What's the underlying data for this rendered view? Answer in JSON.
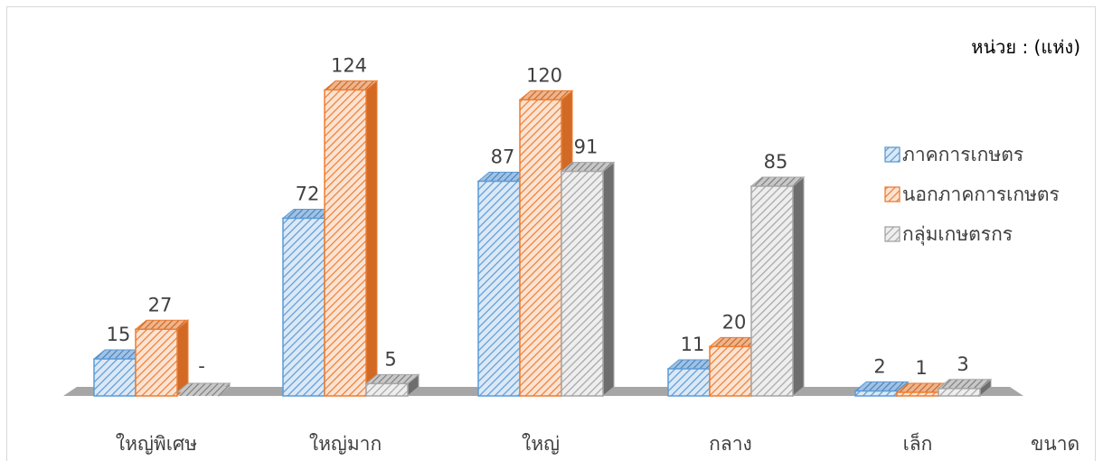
{
  "chart_data": {
    "type": "bar",
    "unit_label": "หน่วย : (แห่ง)",
    "xlabel": "ขนาด",
    "categories": [
      "ใหญ่พิเศษ",
      "ใหญ่มาก",
      "ใหญ่",
      "กลาง",
      "เล็ก"
    ],
    "series": [
      {
        "name": "ภาคการเกษตร",
        "values": [
          15,
          72,
          87,
          11,
          2
        ],
        "labels": [
          "15",
          "72",
          "87",
          "11",
          "2"
        ],
        "color": "#5b9bd5"
      },
      {
        "name": "นอกภาคการเกษตร",
        "values": [
          27,
          124,
          120,
          20,
          1
        ],
        "labels": [
          "27",
          "124",
          "120",
          "20",
          "1"
        ],
        "color": "#ed7d31"
      },
      {
        "name": "กลุ่มเกษตรกร",
        "values": [
          0,
          5,
          91,
          85,
          3
        ],
        "labels": [
          "-",
          "5",
          "91",
          "85",
          "3"
        ],
        "color": "#a5a5a5"
      }
    ],
    "ylim": [
      0,
      130
    ],
    "legend_position": "right",
    "grid": false
  }
}
